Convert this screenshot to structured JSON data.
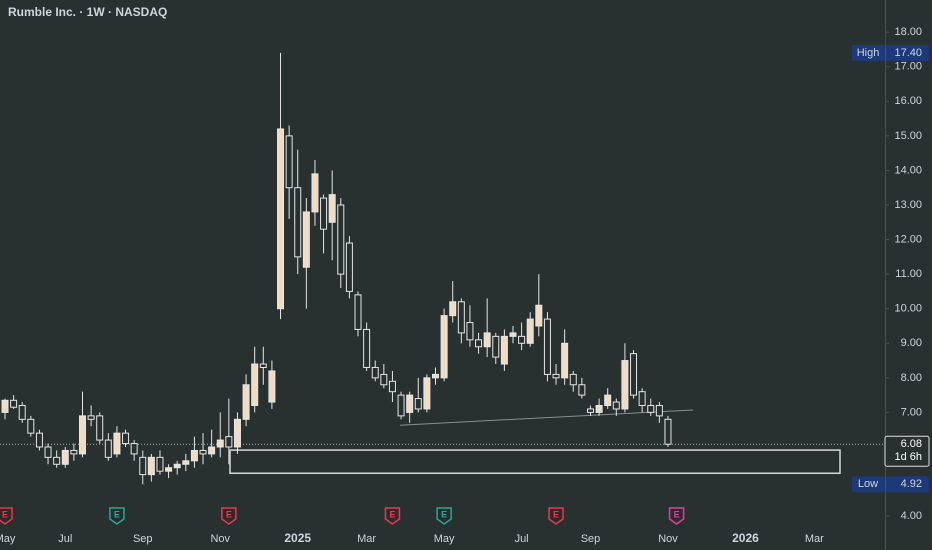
{
  "chart_data": {
    "type": "candlestick",
    "title": "Rumble Inc. · 1W · NASDAQ",
    "background": "#283130",
    "up_color": "#f0dcc4",
    "down_color": "#283130",
    "wick_color": "#e6e6e6",
    "categories": [
      "May",
      null,
      null,
      null,
      null,
      null,
      null,
      "Jul",
      null,
      null,
      null,
      null,
      null,
      null,
      null,
      null,
      "Sep",
      null,
      null,
      null,
      null,
      null,
      null,
      null,
      null,
      "Nov",
      null,
      null,
      null,
      null,
      null,
      null,
      null,
      null,
      "2025",
      null,
      null,
      null,
      null,
      null,
      null,
      null,
      "Mar",
      null,
      null,
      null,
      null,
      null,
      null,
      null,
      null,
      "May",
      null,
      null,
      null,
      null,
      null,
      null,
      null,
      null,
      "Jul",
      null,
      null,
      null,
      null,
      null,
      null,
      null,
      "Sep",
      null,
      null,
      null,
      null,
      null,
      null,
      null,
      null,
      "Nov",
      null,
      null,
      null,
      null,
      null,
      null,
      null,
      null,
      "2026",
      null,
      null,
      null,
      null,
      null,
      null,
      null,
      "Mar",
      null,
      null,
      null,
      null,
      null,
      null,
      null,
      null
    ],
    "open": [
      7.0,
      7.35,
      7.2,
      6.8,
      6.4,
      6.0,
      5.7,
      5.5,
      5.9,
      5.8,
      6.9,
      6.9,
      6.2,
      5.8,
      6.4,
      6.1,
      5.7,
      5.2,
      5.7,
      5.3,
      5.4,
      5.5,
      5.6,
      5.9,
      5.8,
      6.0,
      6.3,
      6.0,
      6.8,
      7.2,
      8.4,
      7.3,
      10.0,
      15.0,
      13.5,
      11.2,
      12.8,
      13.2,
      12.5,
      13.0,
      11.9,
      10.4,
      9.4,
      8.3,
      8.1,
      7.9,
      7.5,
      7.0,
      7.4,
      7.1,
      8.0,
      8.0,
      9.8,
      10.2,
      9.6,
      9.1,
      8.9,
      9.2,
      8.4,
      9.2,
      9.2,
      9.0,
      9.5,
      9.7,
      8.1,
      8.0,
      8.1,
      7.8,
      7.1,
      7.0,
      7.2,
      7.3,
      7.1,
      8.7,
      7.6,
      7.2,
      7.2,
      6.8,
      null,
      null,
      null,
      null,
      null,
      null,
      null,
      null,
      null,
      null,
      null,
      null,
      null,
      null,
      null,
      null,
      null,
      null,
      null,
      null,
      null,
      null,
      null,
      null,
      null
    ],
    "high": [
      7.4,
      7.5,
      7.3,
      6.9,
      6.5,
      6.1,
      5.9,
      6.0,
      6.1,
      7.6,
      7.2,
      7.0,
      6.4,
      6.6,
      6.5,
      6.2,
      5.9,
      5.8,
      5.9,
      5.5,
      5.6,
      5.8,
      6.3,
      6.4,
      6.5,
      7.0,
      7.4,
      7.0,
      8.1,
      8.9,
      8.9,
      8.5,
      17.4,
      15.3,
      14.6,
      13.2,
      14.3,
      13.3,
      14.0,
      13.2,
      12.1,
      10.5,
      9.6,
      8.5,
      8.4,
      8.2,
      7.6,
      7.6,
      8.0,
      8.1,
      8.3,
      10.0,
      10.8,
      10.3,
      10.1,
      9.3,
      10.3,
      9.3,
      9.4,
      9.5,
      9.6,
      9.9,
      11.0,
      9.9,
      8.4,
      9.4,
      8.2,
      8.0,
      7.2,
      7.4,
      7.7,
      7.4,
      9.0,
      8.8,
      7.7,
      7.4,
      7.3,
      6.9,
      null,
      null,
      null,
      null,
      null,
      null,
      null,
      null,
      null,
      null,
      null,
      null,
      null,
      null,
      null,
      null,
      null,
      null,
      null,
      null,
      null,
      null,
      null,
      null,
      null
    ],
    "low": [
      6.8,
      7.1,
      6.7,
      6.3,
      5.9,
      5.5,
      5.4,
      5.4,
      5.6,
      5.7,
      6.6,
      6.1,
      5.6,
      5.7,
      6.0,
      5.6,
      4.92,
      5.0,
      5.2,
      5.1,
      5.2,
      5.3,
      5.4,
      5.5,
      5.7,
      5.7,
      5.5,
      5.8,
      6.6,
      7.0,
      7.8,
      7.1,
      9.7,
      12.6,
      11.0,
      10.0,
      12.4,
      11.6,
      11.4,
      10.6,
      10.3,
      9.2,
      8.2,
      7.9,
      7.7,
      7.3,
      6.8,
      6.7,
      7.0,
      7.0,
      7.8,
      7.9,
      9.6,
      9.0,
      8.9,
      8.7,
      8.6,
      8.4,
      8.2,
      9.0,
      8.8,
      8.9,
      9.2,
      7.9,
      7.8,
      7.8,
      7.6,
      7.4,
      6.9,
      6.9,
      7.1,
      6.9,
      7.0,
      7.4,
      7.0,
      6.9,
      6.7,
      6.0,
      null,
      null,
      null,
      null,
      null,
      null,
      null,
      null,
      null,
      null,
      null,
      null,
      null,
      null,
      null,
      null,
      null,
      null,
      null,
      null,
      null,
      null,
      null,
      null,
      null
    ],
    "close": [
      7.35,
      7.15,
      6.8,
      6.4,
      6.0,
      5.7,
      5.5,
      5.9,
      5.8,
      6.9,
      6.8,
      6.2,
      5.7,
      6.4,
      6.1,
      5.8,
      5.2,
      5.7,
      5.3,
      5.4,
      5.5,
      5.6,
      5.9,
      5.8,
      6.0,
      6.2,
      6.0,
      6.8,
      7.8,
      8.4,
      8.3,
      8.2,
      15.2,
      13.5,
      11.5,
      12.8,
      13.9,
      12.3,
      13.3,
      11.0,
      10.5,
      9.4,
      8.3,
      8.0,
      7.8,
      7.6,
      6.9,
      7.5,
      7.1,
      8.0,
      8.1,
      9.8,
      10.2,
      9.3,
      9.1,
      8.9,
      9.3,
      8.6,
      9.2,
      9.3,
      9.0,
      9.7,
      10.1,
      8.1,
      8.0,
      9.0,
      7.8,
      7.5,
      7.0,
      7.2,
      7.5,
      7.1,
      8.5,
      7.5,
      7.2,
      7.0,
      6.9,
      6.08,
      null,
      null,
      null,
      null,
      null,
      null,
      null,
      null,
      null,
      null,
      null,
      null,
      null,
      null,
      null,
      null,
      null,
      null,
      null,
      null,
      null,
      null,
      null,
      null,
      null
    ],
    "ylim": [
      3.02,
      18.93
    ],
    "yticks": [
      {
        "value": 4,
        "label": "4.00"
      },
      {
        "value": 5,
        "label": "5.00"
      },
      {
        "value": 6,
        "label": "6.00"
      },
      {
        "value": 7,
        "label": "7.00"
      },
      {
        "value": 8,
        "label": "8.00"
      },
      {
        "value": 9,
        "label": "9.00"
      },
      {
        "value": 10,
        "label": "10.00"
      },
      {
        "value": 11,
        "label": "11.00"
      },
      {
        "value": 12,
        "label": "12.00"
      },
      {
        "value": 13,
        "label": "13.00"
      },
      {
        "value": 14,
        "label": "14.00"
      },
      {
        "value": 15,
        "label": "15.00"
      },
      {
        "value": 16,
        "label": "16.00"
      },
      {
        "value": 17,
        "label": "17.00"
      },
      {
        "value": 18,
        "label": "18.00"
      }
    ],
    "high_marker": {
      "label": "High",
      "value": 17.4,
      "value_label": "17.40",
      "color": "#1c3a7a"
    },
    "low_marker": {
      "label": "Low",
      "value": 4.92,
      "color": "#1c3a7a"
    },
    "last_price": {
      "value": 6.08,
      "countdown": "1d 6h"
    },
    "zone": [
      5.24,
      5.91
    ],
    "trendline": [
      6.63,
      7.07
    ],
    "earnings": {
      "label": "E",
      "events": [
        {
          "at": 0,
          "color": "#f23645"
        },
        {
          "at": 13,
          "color": "#22ab94"
        },
        {
          "at": 26,
          "color": "#f23645"
        },
        {
          "at": 45,
          "color": "#f23645"
        },
        {
          "at": 51,
          "color": "#22ab94"
        },
        {
          "at": 64,
          "color": "#f23645"
        },
        {
          "at": 78,
          "color": "#e040a0"
        }
      ]
    }
  }
}
